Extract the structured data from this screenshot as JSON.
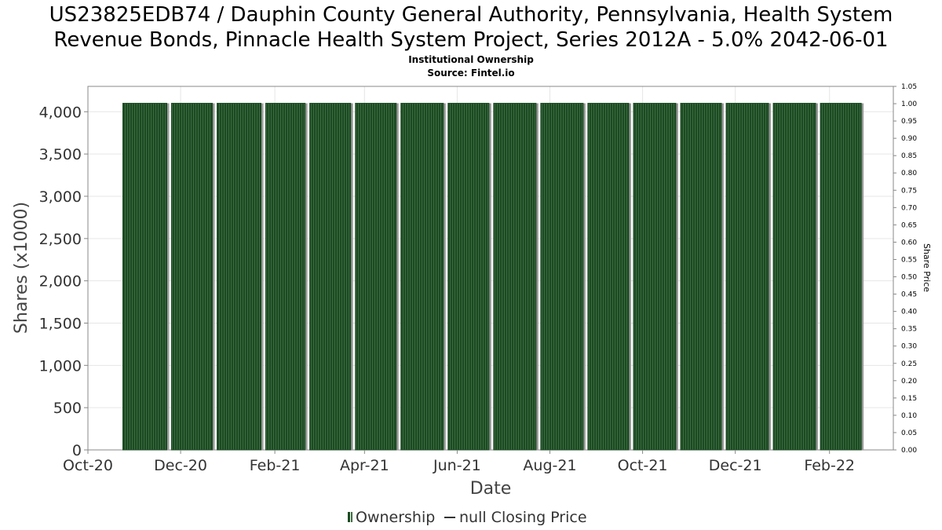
{
  "chart_data": {
    "type": "bar",
    "title_line1": "US23825EDB74 / Dauphin County General Authority, Pennsylvania, Health System",
    "title_line2": "Revenue Bonds, Pinnacle Health System Project, Series 2012A - 5.0% 2042-06-01",
    "subtitle_line1": "Institutional Ownership",
    "subtitle_line2": "Source: Fintel.io",
    "xlabel": "Date",
    "ylabel": "Shares (x1000)",
    "ylabel_right": "Share Price",
    "ylim": [
      0,
      4300
    ],
    "ylim_right": [
      0,
      1.05
    ],
    "y_ticks": [
      {
        "value": 0,
        "label": "0"
      },
      {
        "value": 500,
        "label": "500"
      },
      {
        "value": 1000,
        "label": "1,000"
      },
      {
        "value": 1500,
        "label": "1,500"
      },
      {
        "value": 2000,
        "label": "2,000"
      },
      {
        "value": 2500,
        "label": "2,500"
      },
      {
        "value": 3000,
        "label": "3,000"
      },
      {
        "value": 3500,
        "label": "3,500"
      },
      {
        "value": 4000,
        "label": "4,000"
      }
    ],
    "y_right_ticks": [
      "0.00",
      "0.05",
      "0.10",
      "0.15",
      "0.20",
      "0.25",
      "0.30",
      "0.35",
      "0.40",
      "0.45",
      "0.50",
      "0.55",
      "0.60",
      "0.65",
      "0.70",
      "0.75",
      "0.80",
      "0.85",
      "0.90",
      "0.95",
      "1.00",
      "1.05"
    ],
    "x_range": [
      "2020-10-01",
      "2022-03-15"
    ],
    "x_ticks": [
      {
        "date": "2020-10-01",
        "label": "Oct-20"
      },
      {
        "date": "2020-12-01",
        "label": "Dec-20"
      },
      {
        "date": "2021-02-01",
        "label": "Feb-21"
      },
      {
        "date": "2021-04-01",
        "label": "Apr-21"
      },
      {
        "date": "2021-06-01",
        "label": "Jun-21"
      },
      {
        "date": "2021-08-01",
        "label": "Aug-21"
      },
      {
        "date": "2021-10-01",
        "label": "Oct-21"
      },
      {
        "date": "2021-12-01",
        "label": "Dec-21"
      },
      {
        "date": "2022-02-01",
        "label": "Feb-22"
      }
    ],
    "bars": [
      {
        "start": "2020-10-24",
        "end": "2020-11-25",
        "value": 4100
      },
      {
        "start": "2020-11-25",
        "end": "2020-12-25",
        "value": 4100
      },
      {
        "start": "2020-12-25",
        "end": "2021-01-26",
        "value": 4100
      },
      {
        "start": "2021-01-26",
        "end": "2021-02-24",
        "value": 4100
      },
      {
        "start": "2021-02-24",
        "end": "2021-03-26",
        "value": 4100
      },
      {
        "start": "2021-03-26",
        "end": "2021-04-25",
        "value": 4100
      },
      {
        "start": "2021-04-25",
        "end": "2021-05-26",
        "value": 4100
      },
      {
        "start": "2021-05-26",
        "end": "2021-06-25",
        "value": 4100
      },
      {
        "start": "2021-06-25",
        "end": "2021-07-26",
        "value": 4100
      },
      {
        "start": "2021-07-26",
        "end": "2021-08-26",
        "value": 4100
      },
      {
        "start": "2021-08-26",
        "end": "2021-09-25",
        "value": 4100
      },
      {
        "start": "2021-09-25",
        "end": "2021-10-26",
        "value": 4100
      },
      {
        "start": "2021-10-26",
        "end": "2021-11-25",
        "value": 4100
      },
      {
        "start": "2021-11-25",
        "end": "2021-12-26",
        "value": 4100
      },
      {
        "start": "2021-12-26",
        "end": "2022-01-26",
        "value": 4100
      },
      {
        "start": "2022-01-26",
        "end": "2022-02-25",
        "value": 4100
      }
    ],
    "grid": true,
    "legend": {
      "placement": "bottom-center",
      "ownership_label": "Ownership",
      "price_label": "null Closing Price"
    },
    "colors": {
      "bar_fill": "#1b4a22",
      "bar_stripe": "#3d6b40",
      "bar_shadow": "#9a9a9a",
      "grid": "#e6e6e6",
      "axis": "#888888"
    }
  }
}
